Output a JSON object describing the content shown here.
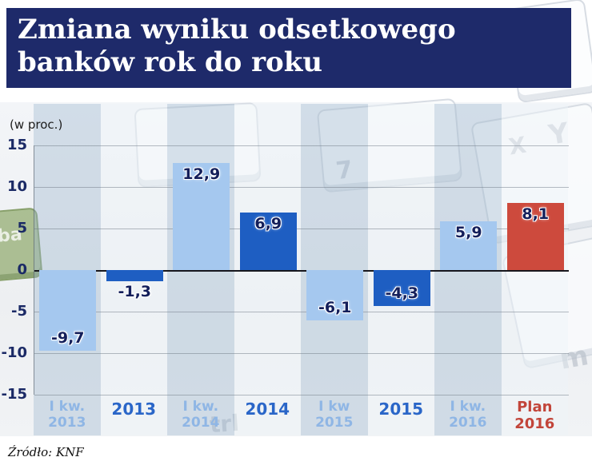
{
  "header": {
    "title_line1": "Zmiana wyniku odsetkowego",
    "title_line2": "banków rok do roku",
    "background_color": "#1e2a6a",
    "text_color": "#ffffff"
  },
  "subtitle": "(w proc.)",
  "source": "Źródło: KNF",
  "decor": {
    "green_key_label": "ba",
    "faint_letters": [
      "Y",
      "X",
      "7",
      "m",
      "trl"
    ]
  },
  "chart_data": {
    "type": "bar",
    "title": "Zmiana wyniku odsetkowego banków rok do roku",
    "unit_label": "(w proc.)",
    "ylim": [
      -15,
      15
    ],
    "yticks": [
      15,
      10,
      5,
      0,
      -5,
      -10,
      -15
    ],
    "grid": true,
    "categories": [
      {
        "lines": [
          "I kw.",
          "2013"
        ],
        "style": "quarter"
      },
      {
        "lines": [
          "2013"
        ],
        "style": "year"
      },
      {
        "lines": [
          "I kw.",
          "2014"
        ],
        "style": "quarter"
      },
      {
        "lines": [
          "2014"
        ],
        "style": "year"
      },
      {
        "lines": [
          "I kw",
          "2015"
        ],
        "style": "quarter"
      },
      {
        "lines": [
          "2015"
        ],
        "style": "year"
      },
      {
        "lines": [
          "I kw.",
          "2016"
        ],
        "style": "quarter"
      },
      {
        "lines": [
          "Plan",
          "2016"
        ],
        "style": "plan"
      }
    ],
    "values": [
      -9.7,
      -1.3,
      12.9,
      6.9,
      -6.1,
      -4.3,
      5.9,
      8.1
    ],
    "value_labels": [
      "-9,7",
      "-1,3",
      "12,9",
      "6,9",
      "-6,1",
      "-4,3",
      "5,9",
      "8,1"
    ],
    "bar_styles": [
      "light",
      "dark",
      "light",
      "dark",
      "light",
      "dark",
      "light",
      "plan"
    ],
    "colors": {
      "light": "#a5c8ef",
      "dark": "#1e5ec2",
      "plan": "#cd4a3d",
      "value_label": "#141f5b",
      "xlabel_quarter": "#8fb6e5",
      "xlabel_year": "#2a66c8",
      "xlabel_plan": "#c2453a",
      "axis_label": "#1b2a66"
    }
  }
}
